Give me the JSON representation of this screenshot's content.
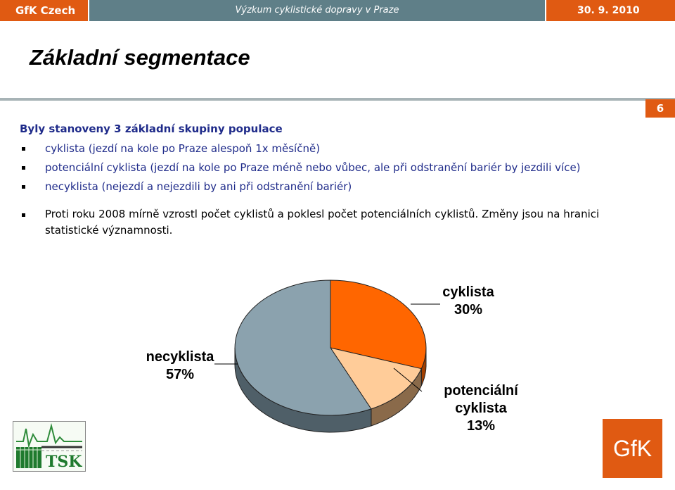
{
  "header": {
    "brand": "GfK Czech",
    "subtitle": "Výzkum cyklistické dopravy v Praze",
    "date": "30. 9. 2010"
  },
  "slide": {
    "title": "Základní segmentace",
    "page_number": "6",
    "lead": "Byly stanoveny 3 základní skupiny populace",
    "bullets": [
      "cyklista (jezdí na kole po Praze alespoň 1x měsíčně)",
      "potenciální cyklista (jezdí na kole po Praze méně nebo vůbec, ale při odstranění bariér by jezdili více)",
      "necyklista (nejezdí a nejezdili by ani při odstranění bariér)"
    ],
    "note": "Proti roku 2008 mírně vzrostl počet cyklistů a poklesl počet potenciálních cyklistů. Změny jsou na hranici statistické významnosti."
  },
  "chart_data": {
    "type": "pie",
    "categories": [
      "cyklista",
      "potenciální cyklista",
      "necyklista"
    ],
    "values": [
      30,
      13,
      57
    ],
    "labels": [
      {
        "name_lines": [
          "cyklista"
        ],
        "value_text": "30%"
      },
      {
        "name_lines": [
          "potenciální",
          "cyklista"
        ],
        "value_text": "13%"
      },
      {
        "name_lines": [
          "necyklista"
        ],
        "value_text": "57%"
      }
    ],
    "colors": [
      "#ff6600",
      "#ffcc99",
      "#8ba2ae"
    ],
    "side_colors": [
      "#a33f00",
      "#8a6a4a",
      "#4f5f68"
    ]
  },
  "logos": {
    "left_text": "TSK",
    "right_text": "GfK"
  }
}
